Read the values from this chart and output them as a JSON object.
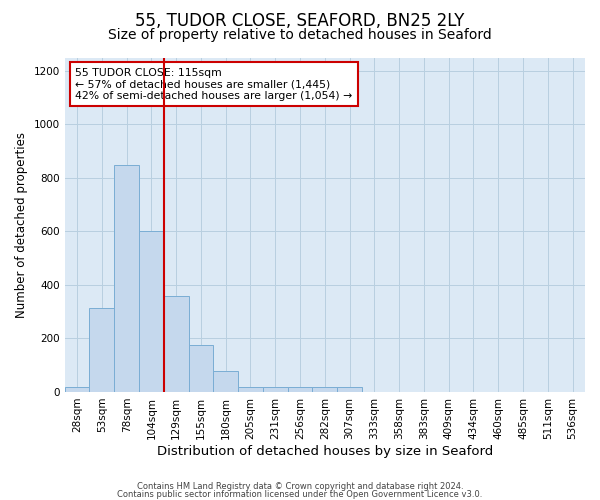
{
  "title1": "55, TUDOR CLOSE, SEAFORD, BN25 2LY",
  "title2": "Size of property relative to detached houses in Seaford",
  "xlabel": "Distribution of detached houses by size in Seaford",
  "ylabel": "Number of detached properties",
  "footer1": "Contains HM Land Registry data © Crown copyright and database right 2024.",
  "footer2": "Contains public sector information licensed under the Open Government Licence v3.0.",
  "categories": [
    "28sqm",
    "53sqm",
    "78sqm",
    "104sqm",
    "129sqm",
    "155sqm",
    "180sqm",
    "205sqm",
    "231sqm",
    "256sqm",
    "282sqm",
    "307sqm",
    "333sqm",
    "358sqm",
    "383sqm",
    "409sqm",
    "434sqm",
    "460sqm",
    "485sqm",
    "511sqm",
    "536sqm"
  ],
  "values": [
    20,
    315,
    850,
    600,
    360,
    175,
    80,
    20,
    20,
    20,
    20,
    20,
    0,
    0,
    0,
    0,
    0,
    0,
    0,
    0,
    0
  ],
  "bar_color": "#c5d8ed",
  "bar_edge_color": "#7aadd4",
  "vline_color": "#cc0000",
  "annotation_text": "55 TUDOR CLOSE: 115sqm\n← 57% of detached houses are smaller (1,445)\n42% of semi-detached houses are larger (1,054) →",
  "annotation_box_color": "#ffffff",
  "annotation_box_edge": "#cc0000",
  "ylim": [
    0,
    1250
  ],
  "yticks": [
    0,
    200,
    400,
    600,
    800,
    1000,
    1200
  ],
  "background_color": "#ffffff",
  "plot_bg_color": "#dce9f5",
  "grid_color": "#b8cfe0",
  "title1_fontsize": 12,
  "title2_fontsize": 10,
  "xlabel_fontsize": 9.5,
  "ylabel_fontsize": 8.5,
  "tick_fontsize": 7.5,
  "footer_fontsize": 6.0
}
